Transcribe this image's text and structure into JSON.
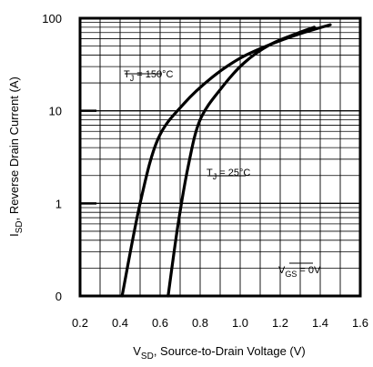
{
  "chart_data": {
    "type": "line",
    "title": "",
    "xlabel_main": "V",
    "xlabel_sub": "SD",
    "xlabel_rest": ", Source-to-Drain Voltage (V)",
    "ylabel_main": "I",
    "ylabel_sub": "SD",
    "ylabel_rest": ", Reverse Drain Current (A)",
    "xlim": [
      0.2,
      1.6
    ],
    "y_scale": "log",
    "x_ticks": [
      "0.2",
      "0.4",
      "0.6",
      "0.8",
      "1.0",
      "1.2",
      "1.4",
      "1.6"
    ],
    "y_ticks": [
      "0",
      "1",
      "10",
      "100"
    ],
    "grid": true,
    "series": [
      {
        "label_main": "T",
        "label_sub": "J",
        "label_rest": " = 150°C",
        "x": [
          0.41,
          0.5,
          0.59,
          0.72,
          0.86,
          1.0,
          1.15,
          1.3,
          1.45
        ],
        "y": [
          0.0,
          1.0,
          5.0,
          12.0,
          23.0,
          37.0,
          52.0,
          68.0,
          85.0
        ]
      },
      {
        "label_main": "T",
        "label_sub": "J",
        "label_rest": " = 25°C",
        "x": [
          0.64,
          0.69,
          0.74,
          0.8,
          0.91,
          1.02,
          1.15,
          1.28,
          1.37
        ],
        "y": [
          0.0,
          0.6,
          2.5,
          8.0,
          18.0,
          33.0,
          52.0,
          68.0,
          80.0
        ]
      }
    ],
    "annotations": [
      {
        "main": "V",
        "sub": "GS",
        "rest": " = 0V"
      }
    ]
  }
}
